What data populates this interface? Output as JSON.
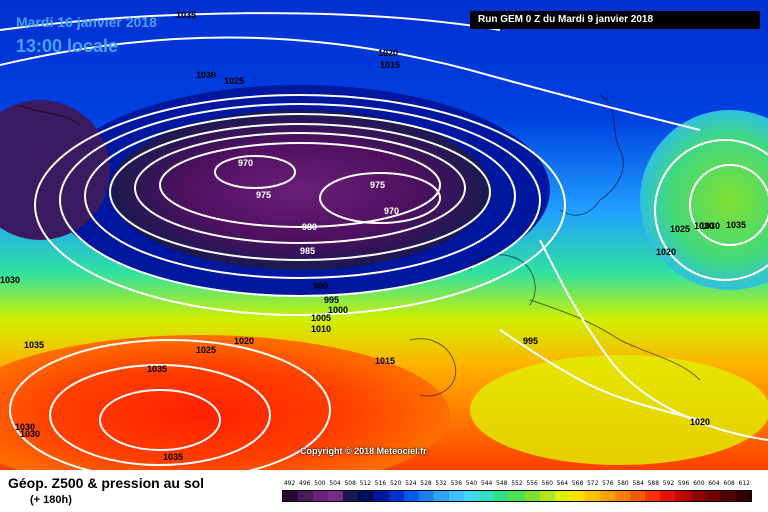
{
  "header": {
    "date_title": "Mardi 16 janvier 2018",
    "time_title": "13:00 locale",
    "run_label": "Run GEM 0 Z du Mardi 9 janvier 2018"
  },
  "copyright": "Copyright © 2018 Meteociel.fr",
  "footer": {
    "variable_title": "Géop. Z500 & pression au sol",
    "forecast_hour": "(+ 180h)"
  },
  "legend": {
    "ticks": [
      "492",
      "496",
      "500",
      "504",
      "508",
      "512",
      "516",
      "520",
      "524",
      "528",
      "532",
      "536",
      "540",
      "544",
      "548",
      "552",
      "556",
      "560",
      "564",
      "568",
      "572",
      "576",
      "580",
      "584",
      "588",
      "592",
      "596",
      "600",
      "604",
      "608",
      "612"
    ],
    "colors": [
      "#2a0a32",
      "#4a1a5a",
      "#6a1f78",
      "#7a2a8a",
      "#1a1a50",
      "#001060",
      "#0018a0",
      "#0030d0",
      "#0058ff",
      "#1a80ff",
      "#30a0ff",
      "#40c0ff",
      "#40d8f0",
      "#30e0c0",
      "#30e080",
      "#50e050",
      "#80e030",
      "#b0e820",
      "#e0f000",
      "#ffe000",
      "#ffc000",
      "#ffa000",
      "#ff8000",
      "#ff5800",
      "#ff3000",
      "#e81000",
      "#c00000",
      "#900000",
      "#700000",
      "#500000",
      "#300000"
    ]
  },
  "map": {
    "lows": [
      {
        "label": "970"
      },
      {
        "label": "970"
      }
    ],
    "highs": [
      {
        "label": "1035"
      },
      {
        "label": "1035"
      },
      {
        "label": "1035"
      }
    ],
    "isobar_labels": [
      "1035",
      "1030",
      "1025",
      "1020",
      "1015",
      "975",
      "975",
      "980",
      "985",
      "990",
      "995",
      "1000",
      "1005",
      "1010",
      "1030",
      "1035",
      "1030",
      "1025",
      "1020",
      "1030",
      "1030",
      "1015",
      "995",
      "1025",
      "1030",
      "1020",
      "1020"
    ]
  }
}
